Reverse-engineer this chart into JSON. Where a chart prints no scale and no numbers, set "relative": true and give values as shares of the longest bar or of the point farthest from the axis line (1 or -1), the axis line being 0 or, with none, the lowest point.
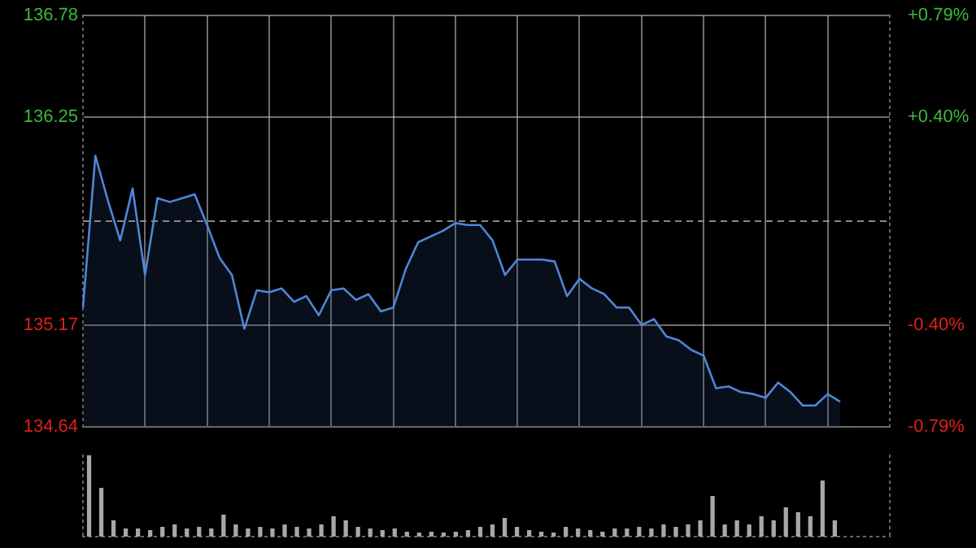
{
  "chart_data": [
    {
      "type": "area",
      "categories": [
        null,
        null,
        null,
        null,
        null,
        null,
        null,
        null,
        null,
        null,
        null,
        null,
        null,
        null,
        null,
        null,
        null,
        null,
        null,
        null,
        null,
        null,
        null,
        null,
        null,
        null,
        null,
        null,
        null,
        null,
        null,
        null,
        null,
        null,
        null,
        null,
        null,
        null,
        null,
        null,
        null,
        null,
        null,
        null,
        null,
        null,
        null,
        null,
        null,
        null,
        null,
        null,
        null,
        null,
        null,
        null,
        null,
        null,
        null,
        null,
        null,
        null,
        null,
        null,
        null,
        null
      ],
      "series": [
        {
          "color": "#4f86d8",
          "values": [
            135.26,
            136.05,
            135.82,
            135.61,
            135.88,
            135.43,
            135.83,
            135.81,
            135.83,
            135.85,
            135.69,
            135.52,
            135.43,
            135.15,
            135.35,
            135.34,
            135.36,
            135.29,
            135.32,
            135.22,
            135.35,
            135.36,
            135.3,
            135.33,
            135.24,
            135.26,
            135.46,
            135.6,
            135.63,
            135.66,
            135.7,
            135.69,
            135.69,
            135.61,
            135.43,
            135.51,
            135.51,
            135.51,
            135.5,
            135.32,
            135.41,
            135.36,
            135.33,
            135.26,
            135.26,
            135.17,
            135.2,
            135.11,
            135.09,
            135.04,
            135.01,
            134.84,
            134.85,
            134.82,
            134.81,
            134.79,
            134.87,
            134.82,
            134.75,
            134.75,
            134.81,
            134.77,
            null,
            null,
            null,
            null
          ]
        }
      ],
      "ylim": [
        134.64,
        136.78
      ],
      "yticks": [
        134.64,
        135.17,
        136.25,
        136.78
      ],
      "y2lim": [
        -0.79,
        0.79
      ],
      "y2ticks": [
        {
          "value": -0.79,
          "label": "-0.79%"
        },
        {
          "value": -0.4,
          "label": "-0.40%"
        },
        {
          "value": 0.4,
          "label": "+0.40%"
        },
        {
          "value": 0.79,
          "label": "+0.79%"
        }
      ],
      "ref_lines": [
        {
          "axis": "y",
          "value": 135.71,
          "color": "#888888",
          "line_style": "dashed"
        }
      ],
      "grid": true,
      "legend": false,
      "tick_labels": "y",
      "marker": "none",
      "line_style": "solid"
    },
    {
      "type": "bar",
      "relative": true,
      "categories": [
        null,
        null,
        null,
        null,
        null,
        null,
        null,
        null,
        null,
        null,
        null,
        null,
        null,
        null,
        null,
        null,
        null,
        null,
        null,
        null,
        null,
        null,
        null,
        null,
        null,
        null,
        null,
        null,
        null,
        null,
        null,
        null,
        null,
        null,
        null,
        null,
        null,
        null,
        null,
        null,
        null,
        null,
        null,
        null,
        null,
        null,
        null,
        null,
        null,
        null,
        null,
        null,
        null,
        null,
        null,
        null,
        null,
        null,
        null,
        null,
        null,
        null,
        null,
        null,
        null,
        null
      ],
      "series": [
        {
          "color": "#a8a8a8",
          "values": [
            1.0,
            0.6,
            0.2,
            0.1,
            0.1,
            0.08,
            0.12,
            0.15,
            0.1,
            0.12,
            0.1,
            0.27,
            0.15,
            0.1,
            0.12,
            0.1,
            0.15,
            0.12,
            0.1,
            0.15,
            0.25,
            0.2,
            0.12,
            0.1,
            0.08,
            0.1,
            0.06,
            0.05,
            0.06,
            0.05,
            0.06,
            0.08,
            0.12,
            0.15,
            0.23,
            0.12,
            0.08,
            0.06,
            0.05,
            0.12,
            0.1,
            0.08,
            0.06,
            0.1,
            0.1,
            0.12,
            0.1,
            0.15,
            0.12,
            0.15,
            0.2,
            0.5,
            0.15,
            0.2,
            0.15,
            0.25,
            0.2,
            0.36,
            0.3,
            0.25,
            0.69,
            0.2,
            null,
            null,
            null,
            null
          ]
        }
      ],
      "grid": false,
      "legend": false,
      "tick_labels": false
    }
  ]
}
